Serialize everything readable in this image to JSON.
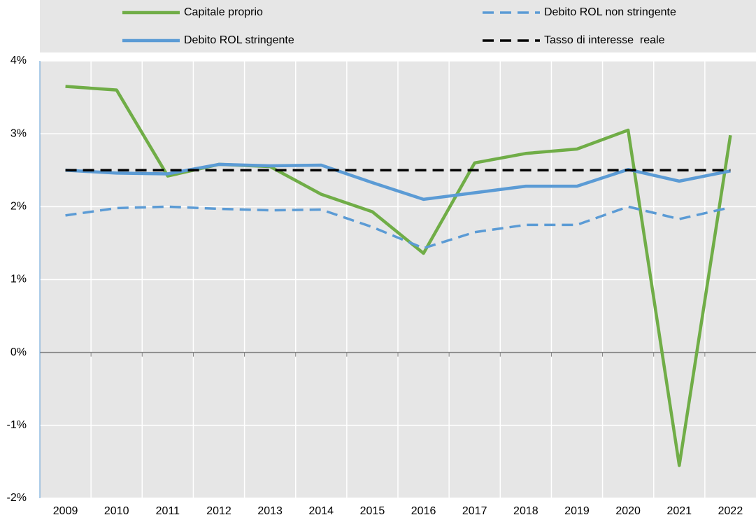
{
  "chart_data": {
    "type": "line",
    "categories": [
      "2009",
      "2010",
      "2011",
      "2012",
      "2013",
      "2014",
      "2015",
      "2016",
      "2017",
      "2018",
      "2019",
      "2020",
      "2021",
      "2022"
    ],
    "series": [
      {
        "name": "Capitale proprio",
        "color": "#70ad47",
        "dashed": false,
        "values": [
          3.65,
          3.6,
          2.42,
          2.58,
          2.55,
          2.17,
          1.93,
          1.36,
          2.6,
          2.73,
          2.79,
          3.05,
          -1.55,
          2.98
        ]
      },
      {
        "name": "Debito ROL non stringente",
        "color": "#5b9bd5",
        "dashed": true,
        "values": [
          1.88,
          1.98,
          2.0,
          1.97,
          1.95,
          1.96,
          1.72,
          1.43,
          1.65,
          1.75,
          1.75,
          2.0,
          1.83,
          1.99
        ]
      },
      {
        "name": "Debito ROL stringente",
        "color": "#5b9bd5",
        "dashed": false,
        "values": [
          2.5,
          2.46,
          2.45,
          2.58,
          2.56,
          2.57,
          2.33,
          2.1,
          2.19,
          2.28,
          2.28,
          2.51,
          2.35,
          2.49
        ]
      },
      {
        "name": "Tasso di interesse  reale",
        "color": "#000000",
        "dashed": true,
        "values": [
          2.5,
          2.5,
          2.5,
          2.5,
          2.5,
          2.5,
          2.5,
          2.5,
          2.5,
          2.5,
          2.5,
          2.5,
          2.5,
          2.5
        ]
      }
    ],
    "ylim": [
      -2,
      4
    ],
    "yticks": [
      {
        "value": -2,
        "label": "-2%"
      },
      {
        "value": -1,
        "label": "-1%"
      },
      {
        "value": 0,
        "label": "0%"
      },
      {
        "value": 1,
        "label": "1%"
      },
      {
        "value": 2,
        "label": "2%"
      },
      {
        "value": 3,
        "label": "3%"
      },
      {
        "value": 4,
        "label": "4%"
      }
    ],
    "grid": true
  }
}
